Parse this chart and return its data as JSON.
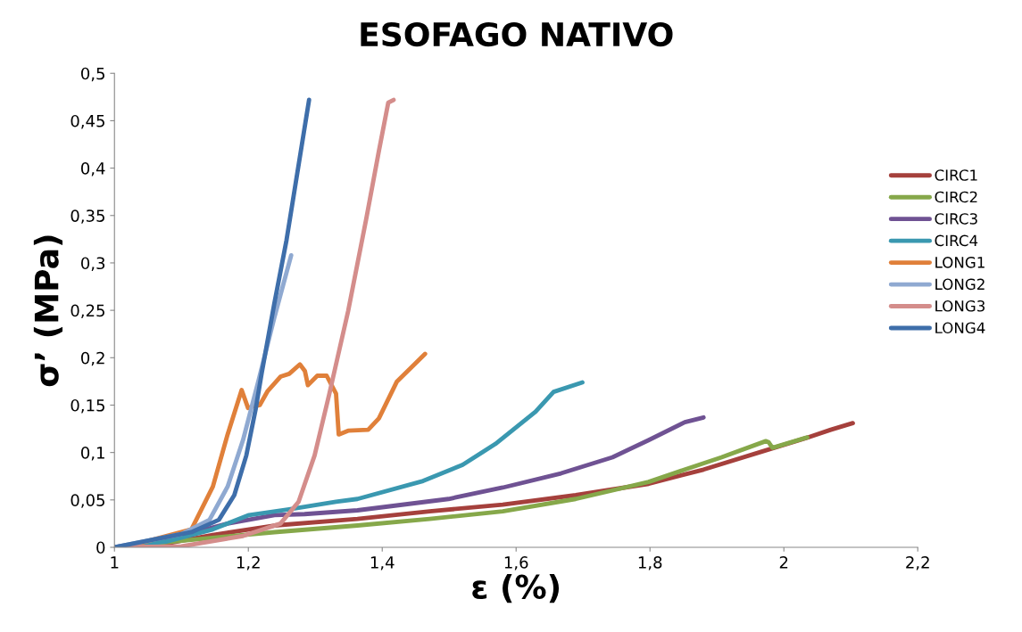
{
  "chart_data": {
    "type": "line",
    "title": "ESOFAGO NATIVO",
    "xlabel": "ε (%)",
    "ylabel": "σ’ (MPa)",
    "xlim": [
      1,
      2.2
    ],
    "ylim": [
      0,
      0.5
    ],
    "xticks": [
      1,
      {
        "value": 1.2,
        "label": "1,2"
      },
      {
        "value": 1.4,
        "label": "1,4"
      },
      {
        "value": 1.6,
        "label": "1,6"
      },
      {
        "value": 1.8,
        "label": "1,8"
      },
      2,
      {
        "value": 2.2,
        "label": "2,2"
      }
    ],
    "yticks": [
      0,
      {
        "value": 0.05,
        "label": "0,05"
      },
      {
        "value": 0.1,
        "label": "0,1"
      },
      {
        "value": 0.15,
        "label": "0,15"
      },
      {
        "value": 0.2,
        "label": "0,2"
      },
      {
        "value": 0.25,
        "label": "0,25"
      },
      {
        "value": 0.3,
        "label": "0,3"
      },
      {
        "value": 0.35,
        "label": "0,35"
      },
      {
        "value": 0.4,
        "label": "0,4"
      },
      {
        "value": 0.45,
        "label": "0,45"
      },
      {
        "value": 0.5,
        "label": "0,5"
      }
    ],
    "grid": false,
    "legend": "right",
    "marker": "none",
    "line_style": "solid",
    "series": [
      {
        "name": "CIRC1",
        "color": "#a5403c",
        "x": [
          1,
          1.077,
          1.147,
          1.239,
          1.363,
          1.471,
          1.58,
          1.689,
          1.798,
          1.88,
          1.967,
          2.032,
          2.07,
          2.103
        ],
        "values": [
          0,
          0.004,
          0.013,
          0.023,
          0.03,
          0.038,
          0.045,
          0.055,
          0.067,
          0.082,
          0.101,
          0.115,
          0.124,
          0.131
        ]
      },
      {
        "name": "CIRC2",
        "color": "#86a84a",
        "x": [
          1,
          1.1,
          1.239,
          1.363,
          1.471,
          1.58,
          1.689,
          1.798,
          1.852,
          1.907,
          1.973,
          1.977,
          1.983,
          2.035
        ],
        "values": [
          0,
          0.007,
          0.016,
          0.023,
          0.03,
          0.038,
          0.051,
          0.069,
          0.082,
          0.095,
          0.112,
          0.111,
          0.105,
          0.116
        ]
      },
      {
        "name": "CIRC3",
        "color": "#6f5293",
        "x": [
          1,
          1.077,
          1.169,
          1.239,
          1.284,
          1.363,
          1.499,
          1.58,
          1.667,
          1.744,
          1.798,
          1.852,
          1.88
        ],
        "values": [
          0,
          0.008,
          0.025,
          0.034,
          0.035,
          0.039,
          0.051,
          0.063,
          0.078,
          0.095,
          0.113,
          0.132,
          0.137
        ]
      },
      {
        "name": "CIRC4",
        "color": "#3a98b0",
        "x": [
          1,
          1.077,
          1.147,
          1.201,
          1.261,
          1.331,
          1.363,
          1.461,
          1.52,
          1.569,
          1.629,
          1.656,
          1.699
        ],
        "values": [
          0,
          0.006,
          0.019,
          0.034,
          0.04,
          0.048,
          0.051,
          0.07,
          0.087,
          0.109,
          0.143,
          0.164,
          0.174
        ]
      },
      {
        "name": "LONG1",
        "color": "#e0803a",
        "x": [
          1.03,
          1.115,
          1.147,
          1.169,
          1.19,
          1.1995,
          1.217,
          1.229,
          1.248,
          1.261,
          1.277,
          1.2845,
          1.289,
          1.303,
          1.317,
          1.331,
          1.335,
          1.349,
          1.379,
          1.395,
          1.422,
          1.441,
          1.464
        ],
        "values": [
          0.003,
          0.019,
          0.064,
          0.119,
          0.166,
          0.147,
          0.15,
          0.165,
          0.18,
          0.183,
          0.193,
          0.186,
          0.171,
          0.181,
          0.181,
          0.162,
          0.119,
          0.123,
          0.124,
          0.136,
          0.175,
          0.188,
          0.204
        ]
      },
      {
        "name": "LONG2",
        "color": "#8fa9d1",
        "x": [
          1,
          1.1,
          1.142,
          1.169,
          1.192,
          1.216,
          1.2387,
          1.264
        ],
        "values": [
          0,
          0.014,
          0.029,
          0.064,
          0.113,
          0.178,
          0.242,
          0.308
        ]
      },
      {
        "name": "LONG3",
        "color": "#d48d8b",
        "x": [
          1,
          1.1,
          1.192,
          1.248,
          1.275,
          1.299,
          1.321,
          1.349,
          1.376,
          1.395,
          1.409,
          1.417
        ],
        "values": [
          0,
          0.001,
          0.012,
          0.025,
          0.048,
          0.097,
          0.162,
          0.249,
          0.346,
          0.418,
          0.469,
          0.472
        ]
      },
      {
        "name": "LONG4",
        "color": "#3e6eaa",
        "x": [
          1,
          1.115,
          1.156,
          1.179,
          1.197,
          1.211,
          1.22,
          1.2385,
          1.257,
          1.2907
        ],
        "values": [
          0,
          0.016,
          0.029,
          0.055,
          0.097,
          0.146,
          0.184,
          0.256,
          0.324,
          0.472
        ]
      }
    ]
  }
}
